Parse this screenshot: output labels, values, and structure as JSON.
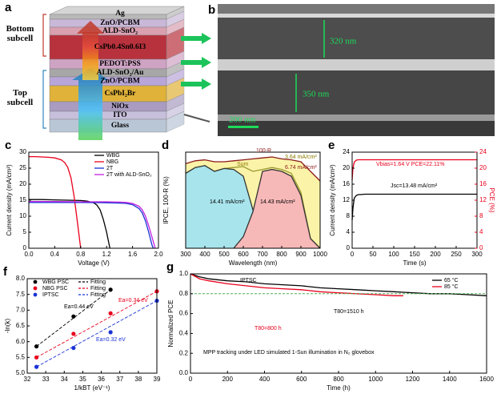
{
  "diagram_a": {
    "panel": "a",
    "subcells": [
      "Bottom subcell",
      "Top subcell"
    ],
    "layers": [
      "Ag",
      "ZnO/PCBM",
      "ALD-SnO₂",
      "CsPb0.4Sn0.6I3",
      "PEDOT:PSS",
      "ALD-SnO₂/Au",
      "ZnO/PCBM",
      "CsPbI₂Br",
      "NiOx",
      "ITO",
      "Glass"
    ]
  },
  "image_b": {
    "panel": "b",
    "labels": [
      "320 nm",
      "350 nm",
      "200 nm"
    ]
  },
  "chart_data": [
    {
      "type": "line",
      "panel": "c",
      "xlabel": "Voltage (V)",
      "ylabel": "Current density (mA/cm²)",
      "xlim": [
        0,
        2.0
      ],
      "xticks": [
        {
          "value": 0,
          "label": "0.0"
        },
        {
          "value": 0.4,
          "label": "0.4"
        },
        {
          "value": 0.8,
          "label": "0.8"
        },
        {
          "value": 1.2,
          "label": "1.2"
        },
        {
          "value": 1.6,
          "label": "1.6"
        },
        {
          "value": 2.0,
          "label": "2.0"
        }
      ],
      "ylim": [
        0,
        30
      ],
      "yticks": [
        0,
        5,
        10,
        15,
        20,
        25,
        30
      ],
      "series": [
        {
          "name": "WBG",
          "color": "#000000",
          "kind": "line",
          "x": [
            0,
            0.2,
            0.4,
            0.6,
            0.8,
            0.9,
            1.0,
            1.05,
            1.1,
            1.15,
            1.2,
            1.25
          ],
          "values": [
            15.2,
            15.2,
            15.1,
            15.0,
            14.9,
            14.7,
            14.2,
            13.5,
            12,
            9,
            5,
            0
          ]
        },
        {
          "name": "NBG",
          "color": "#e8001c",
          "kind": "line",
          "x": [
            0,
            0.1,
            0.2,
            0.3,
            0.4,
            0.5,
            0.55,
            0.6,
            0.65,
            0.7,
            0.75,
            0.8
          ],
          "values": [
            28.6,
            28.6,
            28.5,
            28.4,
            28.2,
            27.6,
            26.8,
            25.3,
            22,
            16,
            8,
            0
          ]
        },
        {
          "name": "2T",
          "color": "#1a33d6",
          "kind": "line",
          "x": [
            0,
            0.4,
            0.8,
            1.2,
            1.4,
            1.5,
            1.6,
            1.7,
            1.75,
            1.8,
            1.85,
            1.9,
            1.92
          ],
          "values": [
            14.3,
            14.3,
            14.3,
            14.2,
            14.1,
            14.0,
            13.6,
            12.4,
            11,
            8.5,
            5,
            1,
            0
          ]
        },
        {
          "name": "2T with ALD-SnO₂",
          "color": "#c21fe0",
          "kind": "line",
          "x": [
            0,
            0.4,
            0.8,
            1.2,
            1.4,
            1.5,
            1.6,
            1.7,
            1.75,
            1.8,
            1.85,
            1.9,
            1.95
          ],
          "values": [
            14.6,
            14.6,
            14.5,
            14.5,
            14.4,
            14.3,
            14.0,
            13.1,
            12,
            10,
            7,
            3.5,
            0
          ]
        }
      ]
    },
    {
      "type": "line",
      "panel": "d",
      "xlabel": "Wavelength (nm)",
      "ylabel": "IPCE, 100-R (%)",
      "xlim": [
        300,
        1000
      ],
      "xticks": [
        300,
        400,
        500,
        600,
        700,
        800,
        900,
        1000
      ],
      "ylim": [
        0,
        100
      ],
      "annotations": [
        "14.41 mA/cm²",
        "14.43 mA/cm²",
        "3.64 mA/cm²",
        "6.74 mA/cm²",
        "Sum",
        "100-R"
      ],
      "series": [
        {
          "color": "#8b1a1a",
          "fill": "#fbf3a8",
          "kind": "area",
          "x": [
            300,
            350,
            400,
            450,
            500,
            550,
            600,
            650,
            700,
            750,
            800,
            850,
            900,
            950,
            1000
          ],
          "values": [
            88,
            91,
            92,
            90,
            90,
            91,
            92,
            93,
            94,
            95,
            93,
            92,
            90,
            80,
            70
          ]
        },
        {
          "color": "#9a9a30",
          "kind": "line",
          "x": [
            300,
            350,
            400,
            450,
            500,
            550,
            600,
            650,
            700,
            750,
            800,
            850,
            900,
            950,
            1000
          ],
          "values": [
            78,
            84,
            86,
            80,
            83,
            84,
            85,
            80,
            82,
            84,
            82,
            78,
            58,
            10,
            0
          ]
        },
        {
          "color": "#333333",
          "fill": "#a8e4ec",
          "kind": "area",
          "x": [
            300,
            350,
            400,
            450,
            500,
            550,
            600,
            650,
            700
          ],
          "values": [
            78,
            84,
            86,
            80,
            83,
            82,
            75,
            40,
            0
          ]
        },
        {
          "color": "#333333",
          "fill": "#f7b8b8",
          "kind": "area",
          "x": [
            550,
            600,
            650,
            700,
            750,
            800,
            850,
            900,
            950,
            1000
          ],
          "values": [
            0,
            12,
            38,
            80,
            82,
            80,
            75,
            55,
            10,
            0
          ]
        }
      ]
    },
    {
      "type": "line",
      "panel": "e",
      "xlabel": "Time (s)",
      "ylabel": "Current density (mA/cm²)",
      "y2label": "PCE (%)",
      "xlim": [
        0,
        300
      ],
      "xticks": [
        0,
        50,
        100,
        150,
        200,
        250,
        300
      ],
      "ylim": [
        0,
        24
      ],
      "yticks": [
        0,
        4,
        8,
        12,
        16,
        20,
        24
      ],
      "y2lim": [
        0,
        24
      ],
      "y2ticks": [
        0,
        4,
        8,
        12,
        16,
        20,
        24
      ],
      "annotations": [
        "Vbias=1.64 V  PCE=22.11%",
        "Jsc=13.48 mA/cm²"
      ],
      "series": [
        {
          "color": "#e8001c",
          "kind": "line",
          "axis": "y2",
          "x": [
            0,
            2,
            5,
            10,
            15,
            20,
            30,
            50,
            100,
            150,
            200,
            250,
            300
          ],
          "values": [
            17,
            20,
            21.5,
            22,
            22.1,
            22.1,
            22.1,
            22.1,
            22.1,
            22.1,
            22.1,
            22.1,
            22.1
          ]
        },
        {
          "color": "#000000",
          "kind": "line",
          "x": [
            0,
            2,
            5,
            10,
            15,
            20,
            30,
            50,
            100,
            150,
            200,
            250,
            300
          ],
          "values": [
            7,
            10,
            12.5,
            13.2,
            13.4,
            13.4,
            13.5,
            13.5,
            13.5,
            13.5,
            13.5,
            13.5,
            13.5
          ]
        }
      ]
    },
    {
      "type": "scatter",
      "panel": "f",
      "xlabel": "1/kBT (eV⁻¹)",
      "ylabel": "-ln(k)",
      "xlim": [
        32,
        39
      ],
      "xticks": [
        32,
        33,
        34,
        35,
        36,
        37,
        38,
        39
      ],
      "ylim": [
        5.0,
        8.0
      ],
      "yticks": [
        {
          "value": 5.0,
          "label": "5.0"
        },
        {
          "value": 5.5,
          "label": "5.5"
        },
        {
          "value": 6.0,
          "label": "6.0"
        },
        {
          "value": 6.5,
          "label": "6.5"
        },
        {
          "value": 7.0,
          "label": "7.0"
        },
        {
          "value": 7.5,
          "label": "7.5"
        },
        {
          "value": 8.0,
          "label": "8.0"
        }
      ],
      "annotations": [
        "Ea=0.44 eV",
        "Ea=0.34 eV",
        "Ea=0.32 eV"
      ],
      "series": [
        {
          "name": "WBG PSC",
          "color": "#000000",
          "kind": "scatter",
          "x": [
            32.5,
            34.5,
            36.5
          ],
          "values": [
            5.85,
            6.8,
            7.65
          ]
        },
        {
          "name": "NBG PSC",
          "color": "#e8001c",
          "kind": "scatter",
          "x": [
            32.5,
            34.5,
            36.5,
            39
          ],
          "values": [
            5.5,
            6.25,
            6.9,
            7.6
          ]
        },
        {
          "name": "IPTSC",
          "color": "#1a33d6",
          "kind": "scatter",
          "x": [
            32.5,
            34.5,
            36.5,
            39
          ],
          "values": [
            5.2,
            5.8,
            6.3,
            7.3
          ]
        },
        {
          "name": "Fitting",
          "color": "#000000",
          "kind": "dash",
          "x": [
            32.5,
            36.5
          ],
          "values": [
            5.85,
            7.65
          ]
        },
        {
          "name": "Fitting",
          "color": "#e8001c",
          "kind": "dash",
          "x": [
            32.5,
            39
          ],
          "values": [
            5.5,
            7.6
          ]
        },
        {
          "name": "Fitting",
          "color": "#1a33d6",
          "kind": "dash",
          "x": [
            32.5,
            39
          ],
          "values": [
            5.2,
            7.3
          ]
        }
      ]
    },
    {
      "type": "line",
      "panel": "g",
      "xlabel": "Time (h)",
      "ylabel": "Normalized PCE",
      "xlim": [
        0,
        1600
      ],
      "xticks": [
        0,
        200,
        400,
        600,
        800,
        1000,
        1200,
        1400,
        1600
      ],
      "ylim": [
        0,
        1.0
      ],
      "yticks": [
        {
          "value": 0,
          "label": "0.0"
        },
        {
          "value": 0.2,
          "label": "0.2"
        },
        {
          "value": 0.4,
          "label": "0.4"
        },
        {
          "value": 0.6,
          "label": "0.6"
        },
        {
          "value": 0.8,
          "label": "0.8"
        },
        {
          "value": 1.0,
          "label": "1.0"
        }
      ],
      "ref_line": 0.8,
      "annotations": [
        "IPTSC",
        "T80=1510 h",
        "T80=800 h",
        "MPP tracking under LED simulated 1-Sun illumination in N₂ glovebox"
      ],
      "series": [
        {
          "name": "65 °C",
          "color": "#000000",
          "kind": "line",
          "x": [
            0,
            50,
            100,
            200,
            300,
            400,
            500,
            600,
            700,
            800,
            900,
            1000,
            1100,
            1200,
            1300,
            1400,
            1500,
            1600
          ],
          "values": [
            1.0,
            0.97,
            0.95,
            0.93,
            0.92,
            0.9,
            0.89,
            0.88,
            0.86,
            0.85,
            0.84,
            0.83,
            0.82,
            0.81,
            0.8,
            0.8,
            0.79,
            0.78
          ]
        },
        {
          "name": "85 °C",
          "color": "#e8001c",
          "kind": "line",
          "x": [
            0,
            50,
            100,
            200,
            300,
            400,
            500,
            600,
            700,
            800,
            900,
            1000,
            1100,
            1150
          ],
          "values": [
            1.0,
            0.95,
            0.93,
            0.9,
            0.88,
            0.86,
            0.85,
            0.84,
            0.82,
            0.81,
            0.8,
            0.79,
            0.78,
            0.78
          ]
        }
      ]
    }
  ]
}
